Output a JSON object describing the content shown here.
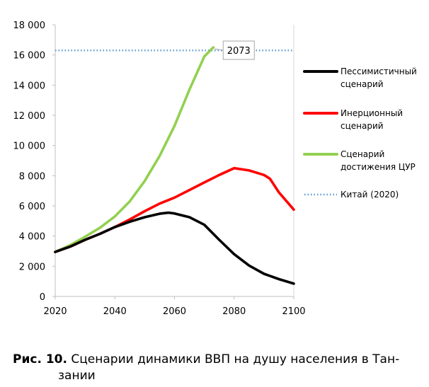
{
  "chart_data": {
    "type": "line",
    "title": "",
    "xlabel": "",
    "ylabel": "",
    "xlim": [
      2020,
      2100
    ],
    "ylim": [
      0,
      18000
    ],
    "x_ticks": [
      "2020",
      "2040",
      "2060",
      "2080",
      "2100"
    ],
    "y_ticks": [
      "0",
      "2 000",
      "4 000",
      "6 000",
      "8 000",
      "10 000",
      "12 000",
      "14 000",
      "16 000",
      "18 000"
    ],
    "grid": false,
    "legend": "right",
    "series": [
      {
        "name": "Пессимистичный сценарий",
        "legend_lines": [
          "Пессимистичный",
          "сценарий"
        ],
        "color": "#000000",
        "style": "solid",
        "x": [
          2020,
          2025,
          2030,
          2035,
          2040,
          2045,
          2050,
          2055,
          2058,
          2060,
          2065,
          2070,
          2075,
          2080,
          2085,
          2090,
          2095,
          2100
        ],
        "y": [
          2950,
          3300,
          3750,
          4150,
          4600,
          4950,
          5250,
          5480,
          5550,
          5500,
          5250,
          4750,
          3750,
          2800,
          2050,
          1500,
          1150,
          850
        ]
      },
      {
        "name": "Инерционный сценарий",
        "legend_lines": [
          "Инерционный",
          "сценарий"
        ],
        "color": "#ff0000",
        "style": "solid",
        "x": [
          2020,
          2025,
          2030,
          2035,
          2040,
          2045,
          2050,
          2055,
          2060,
          2065,
          2070,
          2075,
          2080,
          2085,
          2090,
          2092,
          2095,
          2100
        ],
        "y": [
          2950,
          3300,
          3750,
          4150,
          4600,
          5100,
          5650,
          6150,
          6550,
          7050,
          7550,
          8050,
          8500,
          8350,
          8050,
          7800,
          6900,
          5750
        ]
      },
      {
        "name": "Сценарий достижения ЦУР",
        "legend_lines": [
          "Сценарий",
          "достижения ЦУР"
        ],
        "color": "#92d050",
        "style": "solid",
        "x": [
          2020,
          2025,
          2030,
          2035,
          2040,
          2045,
          2050,
          2055,
          2060,
          2065,
          2070,
          2073
        ],
        "y": [
          2950,
          3400,
          3950,
          4550,
          5300,
          6300,
          7650,
          9300,
          11300,
          13700,
          15900,
          16500
        ]
      },
      {
        "name": "Китай (2020)",
        "legend_lines": [
          "Китай (2020)"
        ],
        "color": "#5b9bd5",
        "style": "dotted",
        "x": [
          2020,
          2100
        ],
        "y": [
          16300,
          16300
        ]
      }
    ],
    "annotations": [
      {
        "text": "2073",
        "x": 2073,
        "y": 16500
      }
    ]
  },
  "caption": {
    "label": "Рис. 10.",
    "line1": " Сценарии динамики ВВП на душу населения в Тан-",
    "line2": "зании"
  }
}
